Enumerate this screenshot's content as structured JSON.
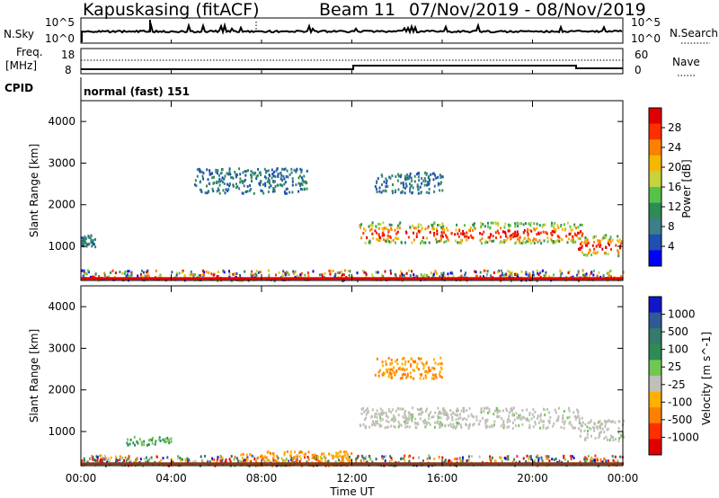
{
  "header": {
    "station": "Kapuskasing (fitACF)",
    "beam": "Beam 11",
    "dates": "07/Nov/2019 - 08/Nov/2019",
    "mode": "normal (fast) 151"
  },
  "strips": {
    "nsky_label": "N.Sky",
    "nsky_ticks": [
      "10^5",
      "10^0"
    ],
    "nsearch_label": "N.Search",
    "nsearch_ticks": [
      "10^5",
      "10^0"
    ],
    "freq_label": "Freq.",
    "freq_unit": "[MHz]",
    "freq_ticks": [
      "18",
      "8"
    ],
    "nave_label": "Nave",
    "nave_ticks": [
      "60",
      "0"
    ],
    "cpid_label": "CPID"
  },
  "x_axis": {
    "label": "Time UT",
    "ticks": [
      "00:00",
      "04:00",
      "08:00",
      "12:00",
      "16:00",
      "20:00",
      "00:00"
    ]
  },
  "colors": {
    "power": [
      "#0000ff",
      "#1f4fb0",
      "#3a7f8a",
      "#2e8b57",
      "#55c34a",
      "#c8d23c",
      "#f5b800",
      "#ff7f00",
      "#ff3000",
      "#e00000"
    ],
    "velocity": [
      "#1414c8",
      "#2e5a96",
      "#357a6a",
      "#2e8b57",
      "#70c850",
      "#c0c0b8",
      "#ffb000",
      "#ff7f00",
      "#ff3000",
      "#e00000"
    ]
  },
  "chart_data": [
    {
      "type": "heatmap",
      "title": "Power",
      "ylabel": "Slant Range [km]",
      "xlabel": "",
      "xlim": [
        0,
        24
      ],
      "ylim": [
        180,
        4500
      ],
      "yticks": [
        "1000",
        "2000",
        "3000",
        "4000"
      ],
      "colorbar": {
        "label": "Power [dB]",
        "ticks": [
          "4",
          "8",
          "12",
          "16",
          "20",
          "24",
          "28"
        ],
        "range": [
          0,
          30
        ]
      },
      "regions": [
        {
          "x0": 0.0,
          "x1": 24.0,
          "y0": 200,
          "y1": 450,
          "level": "mixed"
        },
        {
          "x0": 12.3,
          "x1": 22.2,
          "y0": 1100,
          "y1": 1600,
          "level": "high"
        },
        {
          "x0": 13.0,
          "x1": 16.0,
          "y0": 2300,
          "y1": 2800,
          "level": "low"
        },
        {
          "x0": 22.0,
          "x1": 24.0,
          "y0": 800,
          "y1": 1300,
          "level": "high"
        },
        {
          "x0": 5.0,
          "x1": 10.0,
          "y0": 2300,
          "y1": 2900,
          "level": "low"
        },
        {
          "x0": 0.0,
          "x1": 0.6,
          "y0": 1000,
          "y1": 1300,
          "level": "low"
        }
      ]
    },
    {
      "type": "heatmap",
      "title": "Velocity",
      "ylabel": "Slant Range [km]",
      "xlabel": "Time UT",
      "xlim": [
        0,
        24
      ],
      "ylim": [
        180,
        4500
      ],
      "yticks": [
        "1000",
        "2000",
        "3000",
        "4000"
      ],
      "colorbar": {
        "label": "Velocity [m s^-1]",
        "ticks": [
          "1000",
          "500",
          "100",
          "25",
          "-25",
          "-100",
          "-500",
          "-1000"
        ],
        "range": [
          -1000,
          1000
        ]
      },
      "regions": [
        {
          "x0": 0.0,
          "x1": 24.0,
          "y0": 200,
          "y1": 450,
          "level": "mixed"
        },
        {
          "x0": 7.0,
          "x1": 12.0,
          "y0": 200,
          "y1": 550,
          "level": "negative"
        },
        {
          "x0": 12.3,
          "x1": 22.2,
          "y0": 1100,
          "y1": 1600,
          "level": "grey"
        },
        {
          "x0": 13.0,
          "x1": 16.0,
          "y0": 2300,
          "y1": 2800,
          "level": "negative"
        },
        {
          "x0": 22.0,
          "x1": 24.0,
          "y0": 800,
          "y1": 1300,
          "level": "grey"
        },
        {
          "x0": 2.0,
          "x1": 4.0,
          "y0": 700,
          "y1": 900,
          "level": "positive"
        }
      ]
    }
  ]
}
